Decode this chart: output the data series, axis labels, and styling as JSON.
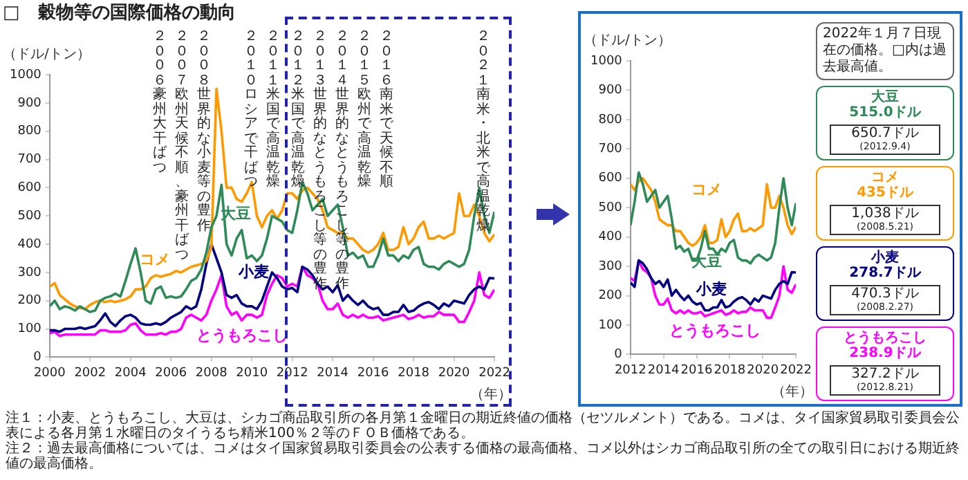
{
  "chart_data": [
    {
      "type": "line",
      "title": "□　穀物等の国際価格の動向",
      "ylabel": "（ドル/トン）",
      "xlabel": "（年）",
      "xlim": [
        2000,
        2022
      ],
      "xticks": [
        2000,
        2002,
        2004,
        2006,
        2008,
        2010,
        2012,
        2014,
        2016,
        2018,
        2020,
        2022
      ],
      "ylim": [
        0,
        1000
      ],
      "yticks": [
        0,
        100,
        200,
        300,
        400,
        500,
        600,
        700,
        800,
        900,
        1000
      ],
      "x": [
        2000,
        2000.25,
        2000.5,
        2000.75,
        2001,
        2001.25,
        2001.5,
        2001.75,
        2002,
        2002.25,
        2002.5,
        2002.75,
        2003,
        2003.25,
        2003.5,
        2003.75,
        2004,
        2004.25,
        2004.5,
        2004.75,
        2005,
        2005.25,
        2005.5,
        2005.75,
        2006,
        2006.25,
        2006.5,
        2006.75,
        2007,
        2007.25,
        2007.5,
        2007.75,
        2008,
        2008.25,
        2008.5,
        2008.75,
        2009,
        2009.25,
        2009.5,
        2009.75,
        2010,
        2010.25,
        2010.5,
        2010.75,
        2011,
        2011.25,
        2011.5,
        2011.75,
        2012,
        2012.25,
        2012.5,
        2012.75,
        2013,
        2013.25,
        2013.5,
        2013.75,
        2014,
        2014.25,
        2014.5,
        2014.75,
        2015,
        2015.25,
        2015.5,
        2015.75,
        2016,
        2016.25,
        2016.5,
        2016.75,
        2017,
        2017.25,
        2017.5,
        2017.75,
        2018,
        2018.25,
        2018.5,
        2018.75,
        2019,
        2019.25,
        2019.5,
        2019.75,
        2020,
        2020.25,
        2020.5,
        2020.75,
        2021,
        2021.25,
        2021.5,
        2021.75,
        2022
      ],
      "series": [
        {
          "name": "大豆",
          "color": "#2e8b57",
          "values": [
            180,
            200,
            170,
            180,
            175,
            165,
            180,
            170,
            160,
            165,
            200,
            210,
            215,
            225,
            215,
            270,
            330,
            385,
            300,
            200,
            190,
            240,
            250,
            210,
            215,
            210,
            215,
            240,
            270,
            280,
            310,
            370,
            460,
            500,
            610,
            400,
            360,
            420,
            450,
            350,
            360,
            340,
            360,
            420,
            500,
            490,
            480,
            450,
            440,
            520,
            620,
            580,
            520,
            540,
            560,
            500,
            520,
            540,
            460,
            360,
            370,
            350,
            360,
            320,
            320,
            360,
            420,
            360,
            360,
            340,
            360,
            350,
            380,
            390,
            330,
            320,
            320,
            310,
            330,
            340,
            330,
            320,
            330,
            380,
            500,
            600,
            500,
            440,
            515
          ]
        },
        {
          "name": "コメ",
          "color": "#ff9900",
          "values": [
            250,
            262,
            220,
            205,
            190,
            180,
            175,
            170,
            185,
            195,
            200,
            195,
            200,
            195,
            200,
            205,
            215,
            240,
            240,
            250,
            280,
            290,
            285,
            290,
            295,
            305,
            300,
            310,
            320,
            325,
            330,
            340,
            390,
            950,
            800,
            600,
            600,
            560,
            550,
            580,
            620,
            500,
            460,
            500,
            520,
            490,
            520,
            580,
            580,
            560,
            590,
            600,
            580,
            560,
            520,
            460,
            450,
            440,
            440,
            420,
            420,
            400,
            380,
            370,
            380,
            400,
            440,
            380,
            380,
            390,
            460,
            400,
            420,
            460,
            480,
            420,
            420,
            430,
            420,
            430,
            440,
            580,
            500,
            500,
            540,
            500,
            440,
            410,
            435
          ]
        },
        {
          "name": "小麦",
          "color": "#000080",
          "values": [
            95,
            95,
            90,
            100,
            100,
            100,
            105,
            100,
            105,
            110,
            130,
            155,
            125,
            110,
            130,
            145,
            150,
            140,
            120,
            115,
            115,
            120,
            115,
            125,
            140,
            150,
            160,
            180,
            170,
            180,
            240,
            330,
            400,
            350,
            300,
            220,
            210,
            220,
            190,
            180,
            180,
            170,
            200,
            250,
            300,
            280,
            250,
            240,
            245,
            230,
            320,
            310,
            290,
            260,
            240,
            250,
            230,
            255,
            200,
            220,
            200,
            185,
            200,
            180,
            170,
            175,
            150,
            150,
            160,
            160,
            185,
            160,
            165,
            180,
            190,
            195,
            185,
            170,
            190,
            180,
            200,
            195,
            190,
            220,
            240,
            250,
            240,
            280,
            279
          ]
        },
        {
          "name": "とうもろこし",
          "color": "#ff00ff",
          "values": [
            85,
            90,
            75,
            80,
            80,
            80,
            80,
            80,
            80,
            80,
            95,
            95,
            90,
            90,
            90,
            95,
            115,
            120,
            95,
            80,
            80,
            80,
            85,
            80,
            90,
            90,
            100,
            140,
            150,
            140,
            130,
            150,
            200,
            240,
            290,
            180,
            150,
            160,
            130,
            150,
            150,
            140,
            150,
            220,
            260,
            290,
            280,
            250,
            260,
            250,
            320,
            290,
            280,
            260,
            200,
            170,
            170,
            190,
            150,
            140,
            150,
            140,
            150,
            140,
            140,
            145,
            130,
            135,
            140,
            145,
            150,
            135,
            140,
            150,
            140,
            145,
            145,
            160,
            150,
            150,
            150,
            125,
            125,
            160,
            200,
            300,
            220,
            210,
            239
          ]
        }
      ],
      "annotations": [
        "２００６豪州大干ばつ",
        "２００７欧州天候不順、豪州干ばつ",
        "２００８世界的な小麦等の豊作",
        "２０１０ロシアで干ばつ",
        "２０１１米国で高温乾燥",
        "２０１２米国で高温乾燥",
        "２０１３世界的なとうもろこし等の豊作",
        "２０１４世界的なとうもろこし等の豊作",
        "２０１５欧州で高温乾燥",
        "２０１６南米で天候不順",
        "２０２１南米・北米で高温乾燥",
        "注１：小麦、とうもろこし、大豆は、シカゴ商品取引所の各月第１金曜日の期近終値の価格（セツルメント）である。コメは、タイ国家貿易取引委員会公表による各月第１水曜日のタイうるち精米100％２等のＦＯＢ価格である。",
        "注２：過去最高価格については、コメはタイ国家貿易取引委員会の公表する価格の最高価格、コメ以外はシカゴ商品取引所の全ての取引日における期近終値の最高価格。"
      ]
    },
    {
      "type": "line",
      "ylabel": "（ドル/トン）",
      "xlabel": "（年）",
      "xlim": [
        2012,
        2022
      ],
      "xticks": [
        2012,
        2014,
        2016,
        2018,
        2020,
        2022
      ],
      "ylim": [
        0,
        1000
      ],
      "yticks": [
        0,
        100,
        200,
        300,
        400,
        500,
        600,
        700,
        800,
        900,
        1000
      ],
      "x": [
        2012,
        2012.25,
        2012.5,
        2012.75,
        2013,
        2013.25,
        2013.5,
        2013.75,
        2014,
        2014.25,
        2014.5,
        2014.75,
        2015,
        2015.25,
        2015.5,
        2015.75,
        2016,
        2016.25,
        2016.5,
        2016.75,
        2017,
        2017.25,
        2017.5,
        2017.75,
        2018,
        2018.25,
        2018.5,
        2018.75,
        2019,
        2019.25,
        2019.5,
        2019.75,
        2020,
        2020.25,
        2020.5,
        2020.75,
        2021,
        2021.25,
        2021.5,
        2021.75,
        2022
      ],
      "series": [
        {
          "name": "大豆",
          "color": "#2e8b57",
          "values": [
            440,
            520,
            620,
            580,
            520,
            540,
            560,
            500,
            520,
            540,
            460,
            360,
            370,
            350,
            360,
            320,
            320,
            360,
            420,
            360,
            360,
            340,
            360,
            350,
            380,
            390,
            330,
            320,
            320,
            310,
            330,
            340,
            330,
            320,
            330,
            380,
            500,
            600,
            500,
            440,
            515
          ]
        },
        {
          "name": "コメ",
          "color": "#ff9900",
          "values": [
            580,
            560,
            590,
            600,
            580,
            560,
            520,
            460,
            450,
            440,
            440,
            420,
            420,
            400,
            380,
            370,
            380,
            400,
            440,
            380,
            380,
            390,
            460,
            400,
            420,
            460,
            480,
            420,
            420,
            430,
            420,
            430,
            440,
            580,
            500,
            500,
            540,
            500,
            440,
            410,
            435
          ]
        },
        {
          "name": "小麦",
          "color": "#000080",
          "values": [
            245,
            230,
            320,
            310,
            290,
            260,
            240,
            250,
            230,
            255,
            200,
            220,
            200,
            185,
            200,
            180,
            170,
            175,
            150,
            150,
            160,
            160,
            185,
            160,
            165,
            180,
            190,
            195,
            185,
            170,
            190,
            180,
            200,
            195,
            190,
            220,
            240,
            250,
            240,
            280,
            279
          ]
        },
        {
          "name": "とうもろこし",
          "color": "#ff00ff",
          "values": [
            260,
            250,
            320,
            290,
            280,
            260,
            200,
            170,
            170,
            190,
            150,
            140,
            150,
            140,
            150,
            140,
            140,
            145,
            130,
            135,
            140,
            145,
            150,
            135,
            140,
            150,
            140,
            145,
            145,
            160,
            150,
            150,
            150,
            125,
            125,
            160,
            200,
            300,
            220,
            210,
            239
          ]
        }
      ],
      "annotations": [
        "2022年１月７日現在の価格。□内は過去最高値。",
        "515.0ドル",
        "650.7ドル",
        "(2012.9.4)",
        "435ドル",
        "1,038ドル",
        "(2008.5.21)",
        "278.7ドル",
        "470.3ドル",
        "(2008.2.27)",
        "238.9ドル",
        "327.2ドル",
        "(2012.8.21)"
      ]
    }
  ]
}
